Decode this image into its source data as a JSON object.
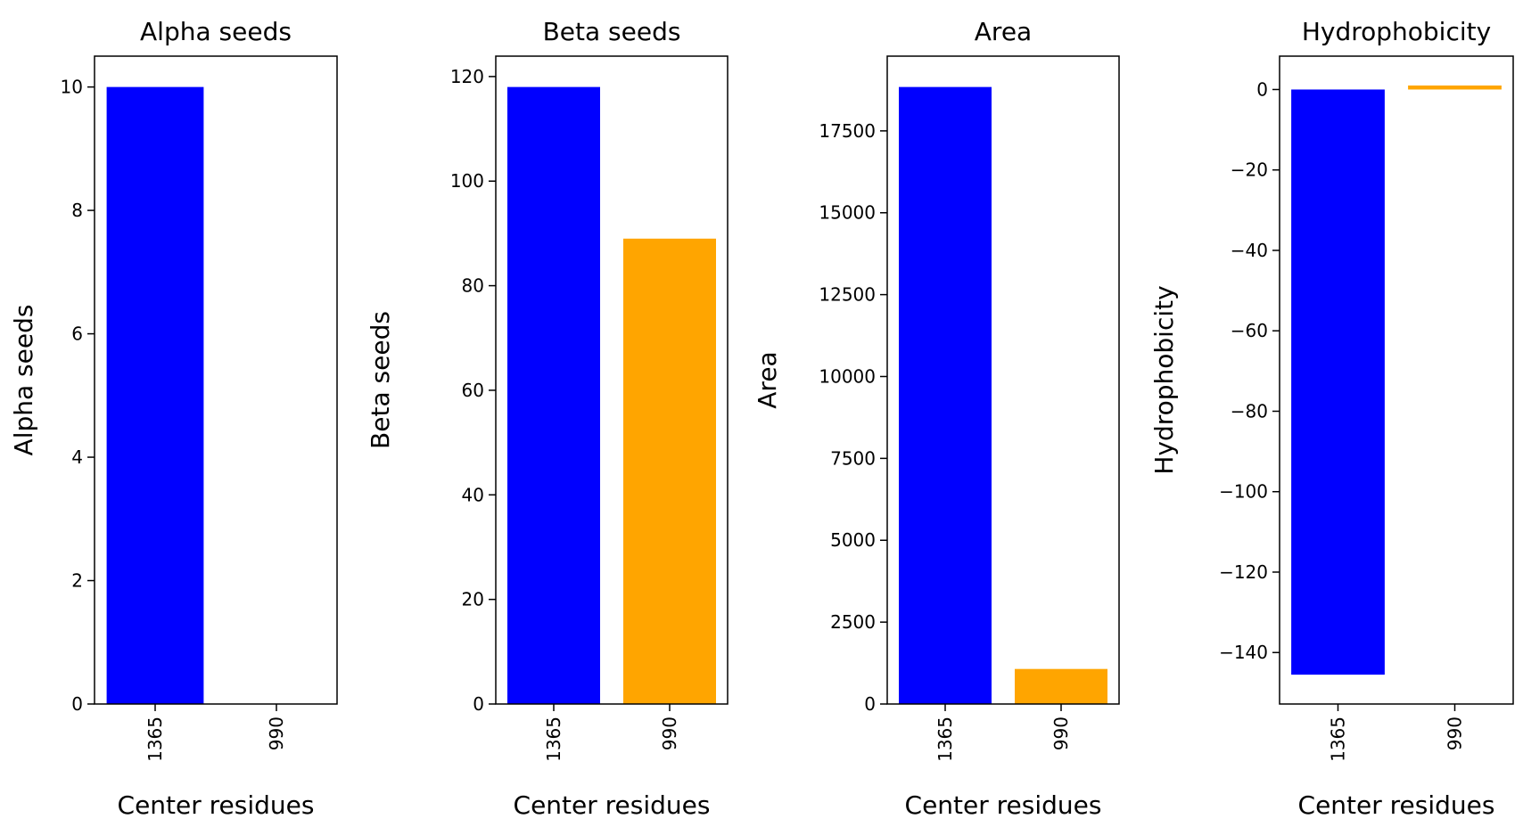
{
  "chart_data": [
    {
      "type": "bar",
      "title": "Alpha seeds",
      "xlabel": "Center residues",
      "ylabel": "Alpha seeds",
      "categories": [
        "1365",
        "990"
      ],
      "values": [
        10,
        0
      ],
      "colors": [
        "#0000ff",
        "#ffa500"
      ],
      "ylim": [
        0,
        10.5
      ],
      "yticks": [
        0,
        2,
        4,
        6,
        8,
        10
      ],
      "ytick_labels": [
        "0",
        "2",
        "4",
        "6",
        "8",
        "10"
      ]
    },
    {
      "type": "bar",
      "title": "Beta seeds",
      "xlabel": "Center residues",
      "ylabel": "Beta seeds",
      "categories": [
        "1365",
        "990"
      ],
      "values": [
        118,
        89
      ],
      "colors": [
        "#0000ff",
        "#ffa500"
      ],
      "ylim": [
        0,
        123.9
      ],
      "yticks": [
        0,
        20,
        40,
        60,
        80,
        100,
        120
      ],
      "ytick_labels": [
        "0",
        "20",
        "40",
        "60",
        "80",
        "100",
        "120"
      ]
    },
    {
      "type": "bar",
      "title": "Area",
      "xlabel": "Center residues",
      "ylabel": "Area",
      "categories": [
        "1365",
        "990"
      ],
      "values": [
        18840,
        1070
      ],
      "colors": [
        "#0000ff",
        "#ffa500"
      ],
      "ylim": [
        0,
        19782
      ],
      "yticks": [
        0,
        2500,
        5000,
        7500,
        10000,
        12500,
        15000,
        17500
      ],
      "ytick_labels": [
        "0",
        "2500",
        "5000",
        "7500",
        "10000",
        "12500",
        "15000",
        "17500"
      ]
    },
    {
      "type": "bar",
      "title": "Hydrophobicity",
      "xlabel": "Center residues",
      "ylabel": "Hydrophobicity",
      "categories": [
        "1365",
        "990"
      ],
      "values": [
        -145.5,
        1.0
      ],
      "colors": [
        "#0000ff",
        "#ffa500"
      ],
      "ylim": [
        -152.8,
        8.3
      ],
      "yticks": [
        0,
        -20,
        -40,
        -60,
        -80,
        -100,
        -120,
        -140
      ],
      "ytick_labels": [
        "0",
        "−20",
        "−40",
        "−60",
        "−80",
        "−100",
        "−120",
        "−140"
      ]
    }
  ]
}
